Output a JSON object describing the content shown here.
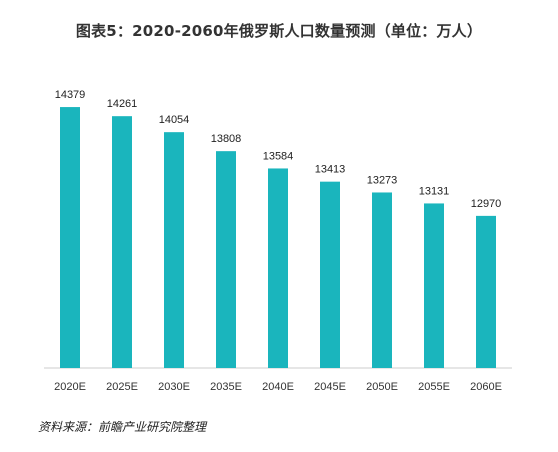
{
  "chart_data": {
    "type": "bar",
    "title": "图表5：2020-2060年俄罗斯人口数量预测（单位：万人）",
    "categories": [
      "2020E",
      "2025E",
      "2030E",
      "2035E",
      "2040E",
      "2045E",
      "2050E",
      "2055E",
      "2060E"
    ],
    "values": [
      14379,
      14261,
      14054,
      13808,
      13584,
      13413,
      13273,
      13131,
      12970
    ],
    "xlabel": "",
    "ylabel": "",
    "ylim": [
      11000,
      14600
    ],
    "grid": false,
    "bar_color": "#1ab5bd",
    "axis_color": "#cccccc"
  },
  "source": "资料来源：前瞻产业研究院整理"
}
